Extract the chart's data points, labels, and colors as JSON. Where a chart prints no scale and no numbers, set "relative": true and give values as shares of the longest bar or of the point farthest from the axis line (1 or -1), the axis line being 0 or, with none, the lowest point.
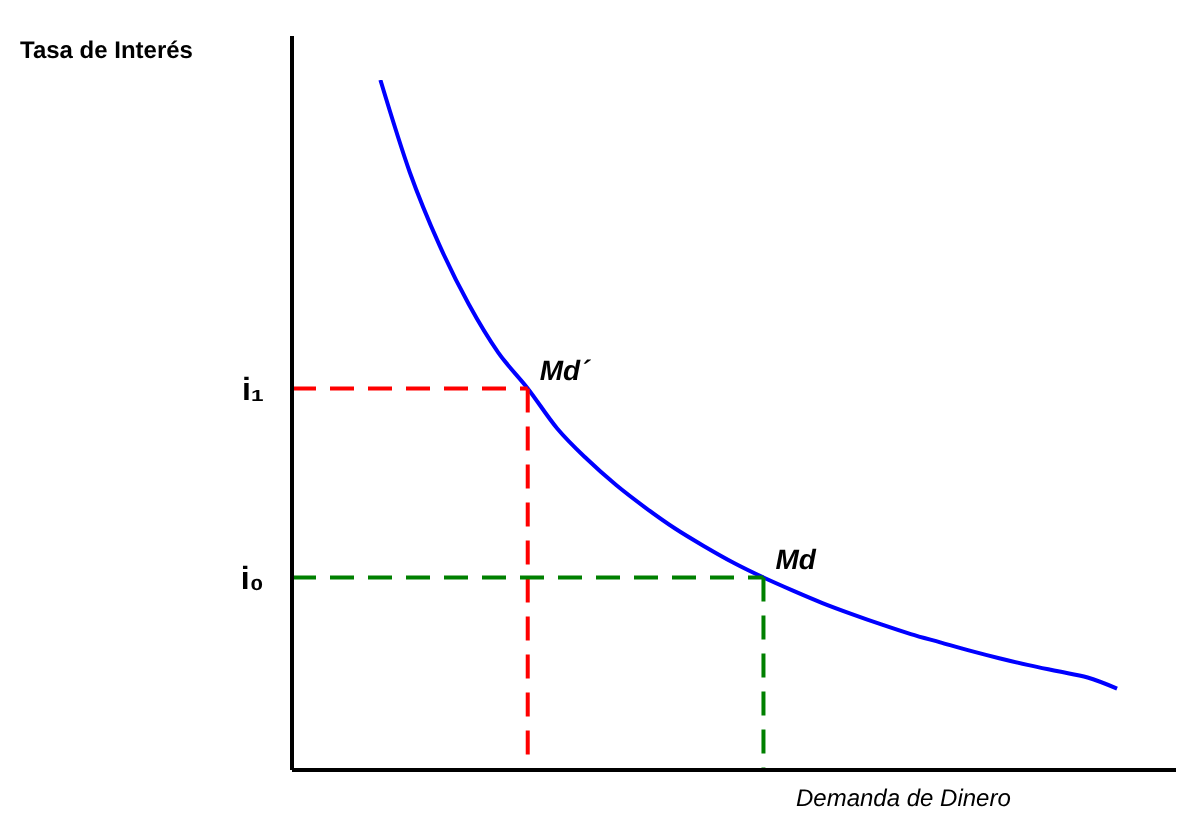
{
  "chart_data": {
    "type": "line",
    "relative": true,
    "ylabel": "Tasa de Interés",
    "xlabel": "Demanda de Dinero",
    "marker": "none",
    "categories": [
      null,
      null,
      null,
      null,
      null,
      null,
      null,
      null,
      null,
      null,
      null,
      null,
      null,
      null,
      null,
      null,
      null,
      null,
      null,
      null,
      null,
      null,
      null,
      null,
      null,
      null,
      null,
      null,
      null,
      null,
      null
    ],
    "series": [
      {
        "color": "#0000ff",
        "line_style": "solid",
        "values": [
          null,
          null,
          null,
          1,
          0.866,
          0.761,
          0.675,
          0.605,
          0.553,
          0.495,
          0.451,
          0.413,
          0.38,
          0.35,
          0.324,
          0.3,
          0.279,
          0.26,
          0.242,
          0.226,
          0.211,
          0.197,
          0.185,
          0.173,
          0.162,
          0.152,
          0.143,
          0.134,
          0.118,
          null,
          null
        ]
      }
    ],
    "ref_lines": [
      {
        "axis": "y",
        "value": 0.553,
        "label": "i₁",
        "color": "#ff0000",
        "line_style": "dashed"
      },
      {
        "axis": "y",
        "value": 0.279,
        "label": "i₀",
        "color": "#008000",
        "line_style": "dashed"
      }
    ],
    "annotations": [
      "Md´",
      "Md"
    ]
  }
}
